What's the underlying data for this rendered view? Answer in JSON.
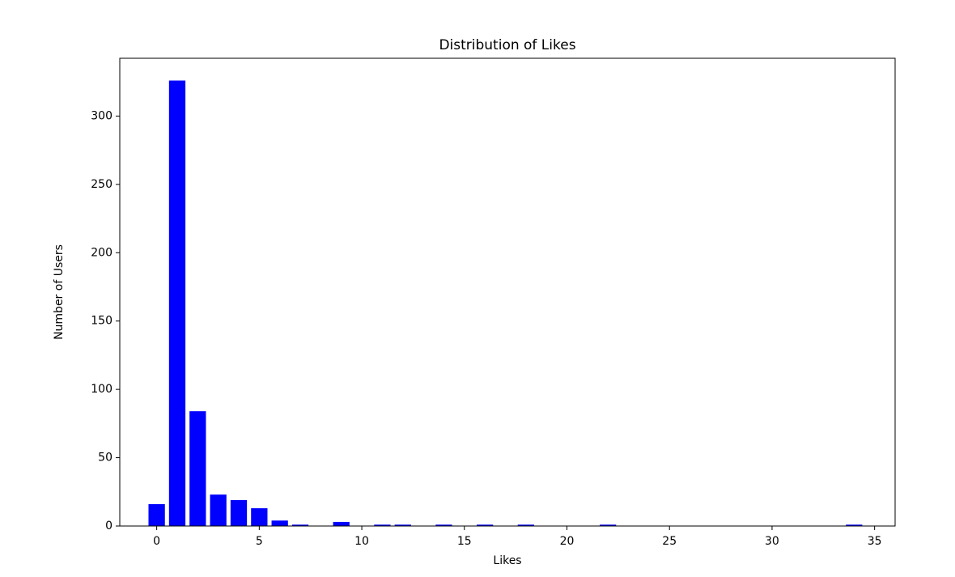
{
  "chart_data": {
    "type": "bar",
    "title": "Distribution of Likes",
    "x_label": "Likes",
    "y_label": "Number of Users",
    "x": [
      0,
      1,
      2,
      3,
      4,
      5,
      6,
      7,
      9,
      11,
      12,
      14,
      16,
      18,
      22,
      34
    ],
    "values": [
      16,
      326,
      84,
      23,
      19,
      13,
      4,
      1,
      3,
      1,
      1,
      1,
      1,
      1,
      1,
      1
    ],
    "color": "#0000ff",
    "xlim": [
      -1.8,
      36.0
    ],
    "xticks": [
      0,
      5,
      10,
      15,
      20,
      25,
      30,
      35
    ],
    "ylim": [
      0,
      342.3
    ],
    "yticks": [
      0,
      50,
      100,
      150,
      200,
      250,
      300
    ]
  }
}
